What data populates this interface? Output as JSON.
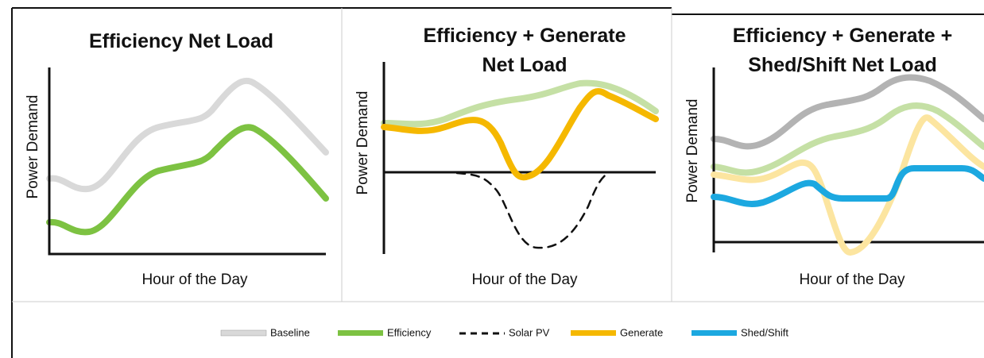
{
  "panels": [
    {
      "title": [
        "Efficiency Net Load"
      ],
      "y_label": "Power Demand",
      "x_label": "Hour of the Day"
    },
    {
      "title": [
        "Efficiency + Generate",
        "Net Load"
      ],
      "y_label": "Power Demand",
      "x_label": "Hour of the Day"
    },
    {
      "title": [
        "Efficiency + Generate +",
        "Shed/Shift Net Load"
      ],
      "y_label": "Power Demand",
      "x_label": "Hour of the Day"
    }
  ],
  "legend": [
    "Baseline",
    "Efficiency",
    "Solar PV",
    "Generate",
    "Shed/Shift"
  ]
}
